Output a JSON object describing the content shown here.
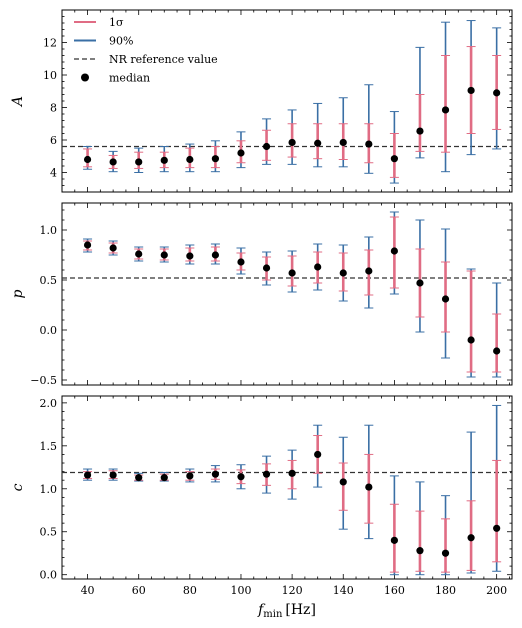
{
  "chart_data": [
    {
      "type": "scatter",
      "ylabel": "A",
      "ylim": [
        2.8,
        14
      ],
      "yticks": [
        4,
        6,
        8,
        10,
        12
      ],
      "reference": 5.6,
      "reference_style": "dashed",
      "x": [
        40,
        50,
        60,
        70,
        80,
        90,
        100,
        110,
        120,
        130,
        140,
        150,
        160,
        170,
        180,
        190,
        200
      ],
      "median": [
        4.8,
        4.65,
        4.65,
        4.75,
        4.8,
        4.85,
        5.2,
        5.6,
        5.85,
        5.8,
        5.85,
        5.75,
        4.85,
        6.55,
        7.85,
        9.05,
        8.9
      ],
      "sigma_low": [
        4.35,
        4.25,
        4.25,
        4.3,
        4.3,
        4.3,
        4.6,
        4.75,
        4.95,
        4.85,
        4.8,
        4.6,
        3.7,
        5.3,
        5.25,
        6.4,
        6.65
      ],
      "sigma_high": [
        5.45,
        5.05,
        5.25,
        5.25,
        5.5,
        5.6,
        5.95,
        6.6,
        7.0,
        7.0,
        7.0,
        7.0,
        6.4,
        8.8,
        11.2,
        11.75,
        11.2
      ],
      "p90_low": [
        4.2,
        4.05,
        4.0,
        4.05,
        4.05,
        4.05,
        4.3,
        4.5,
        4.5,
        4.35,
        4.35,
        3.95,
        3.35,
        4.9,
        4.05,
        5.1,
        5.45
      ],
      "p90_high": [
        5.6,
        5.3,
        5.5,
        5.6,
        5.75,
        5.95,
        6.5,
        7.3,
        7.85,
        8.25,
        8.6,
        9.4,
        7.75,
        11.7,
        13.25,
        13.35,
        12.9
      ],
      "xlim": [
        30,
        206
      ]
    },
    {
      "type": "scatter",
      "ylabel": "p",
      "ylim": [
        -0.55,
        1.27
      ],
      "yticks": [
        -0.5,
        0.0,
        0.5,
        1.0
      ],
      "reference": 0.52,
      "reference_style": "dashed",
      "x": [
        40,
        50,
        60,
        70,
        80,
        90,
        100,
        110,
        120,
        130,
        140,
        150,
        160,
        170,
        180,
        190,
        200
      ],
      "median": [
        0.85,
        0.82,
        0.76,
        0.75,
        0.74,
        0.75,
        0.68,
        0.62,
        0.57,
        0.63,
        0.57,
        0.59,
        0.79,
        0.47,
        0.31,
        -0.1,
        -0.21
      ],
      "sigma_low": [
        0.8,
        0.77,
        0.71,
        0.7,
        0.69,
        0.69,
        0.6,
        0.5,
        0.44,
        0.47,
        0.39,
        0.35,
        0.42,
        0.13,
        -0.02,
        -0.42,
        -0.42
      ],
      "sigma_high": [
        0.89,
        0.87,
        0.81,
        0.81,
        0.82,
        0.83,
        0.77,
        0.73,
        0.74,
        0.78,
        0.77,
        0.8,
        1.13,
        0.81,
        0.68,
        0.59,
        0.16
      ],
      "p90_low": [
        0.78,
        0.75,
        0.69,
        0.68,
        0.66,
        0.66,
        0.56,
        0.45,
        0.38,
        0.4,
        0.29,
        0.22,
        0.36,
        -0.02,
        -0.28,
        -0.47,
        -0.47
      ],
      "p90_high": [
        0.91,
        0.89,
        0.83,
        0.83,
        0.85,
        0.86,
        0.82,
        0.78,
        0.79,
        0.86,
        0.85,
        0.93,
        1.18,
        1.1,
        1.01,
        0.61,
        0.47
      ],
      "xlim": [
        30,
        206
      ]
    },
    {
      "type": "scatter",
      "ylabel": "c",
      "xlabel_main": "f",
      "xlabel_sub": "min",
      "xlabel_unit": "[Hz]",
      "ylim": [
        -0.05,
        2.08
      ],
      "yticks": [
        0.0,
        0.5,
        1.0,
        1.5,
        2.0
      ],
      "reference": 1.19,
      "reference_style": "dashed",
      "x": [
        40,
        50,
        60,
        70,
        80,
        90,
        100,
        110,
        120,
        130,
        140,
        150,
        160,
        170,
        180,
        190,
        200
      ],
      "xticks": [
        40,
        60,
        80,
        100,
        120,
        140,
        160,
        180,
        200
      ],
      "median": [
        1.16,
        1.16,
        1.13,
        1.13,
        1.15,
        1.17,
        1.14,
        1.17,
        1.18,
        1.4,
        1.08,
        1.02,
        0.4,
        0.28,
        0.25,
        0.43,
        0.54
      ],
      "sigma_low": [
        1.12,
        1.12,
        1.1,
        1.1,
        1.1,
        1.11,
        1.06,
        1.04,
        1.0,
        1.18,
        0.75,
        0.6,
        0.03,
        0.04,
        0.03,
        0.05,
        0.15
      ],
      "sigma_high": [
        1.2,
        1.21,
        1.16,
        1.17,
        1.2,
        1.23,
        1.22,
        1.29,
        1.33,
        1.62,
        1.3,
        1.4,
        0.82,
        0.74,
        0.65,
        0.86,
        1.33
      ],
      "p90_low": [
        1.1,
        1.1,
        1.09,
        1.09,
        1.08,
        1.08,
        1.0,
        0.95,
        0.88,
        1.02,
        0.53,
        0.42,
        0.0,
        0.0,
        0.0,
        0.02,
        0.04
      ],
      "p90_high": [
        1.23,
        1.23,
        1.18,
        1.19,
        1.23,
        1.27,
        1.28,
        1.38,
        1.45,
        1.74,
        1.6,
        1.74,
        1.15,
        1.08,
        0.92,
        1.66,
        1.97
      ],
      "xlim": [
        30,
        206
      ]
    }
  ],
  "legend": {
    "placement": "top-left",
    "items": [
      {
        "label": "1σ",
        "kind": "line",
        "color": "#e06c84"
      },
      {
        "label": "90%",
        "kind": "line",
        "color": "#3a6fa5"
      },
      {
        "label": "NR reference value",
        "kind": "dashed",
        "color": "#333333"
      },
      {
        "label": "median",
        "kind": "marker",
        "color": "#000000"
      }
    ]
  },
  "colors": {
    "sigma": "#e06c84",
    "p90": "#3a6fa5",
    "median": "#000000",
    "reference": "#333333"
  }
}
